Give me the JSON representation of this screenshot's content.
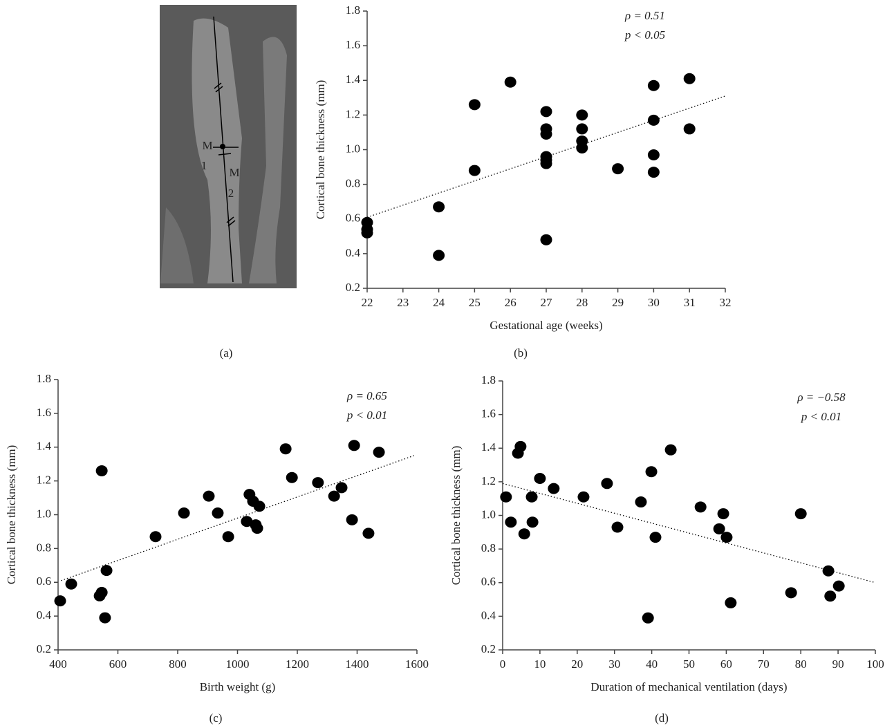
{
  "image_panel": {
    "labels": [
      "M",
      "1",
      "M",
      "2"
    ],
    "caption": "(a)"
  },
  "chart_data": [
    {
      "type": "scatter",
      "caption": "(b)",
      "xlabel": "Gestational age (weeks)",
      "ylabel": "Cortical bone thickness (mm)",
      "annotations": [
        "ρ = 0.51",
        "p < 0.05"
      ],
      "color": "#000000",
      "x": [
        22,
        22,
        22,
        24,
        24,
        25,
        25,
        26,
        27,
        27,
        27,
        27,
        27,
        27,
        27,
        28,
        28,
        28,
        28,
        29,
        30,
        30,
        30,
        30,
        31,
        31
      ],
      "values": [
        0.58,
        0.54,
        0.52,
        0.67,
        0.39,
        1.26,
        0.88,
        1.39,
        1.22,
        1.12,
        1.09,
        0.96,
        0.94,
        0.92,
        0.48,
        1.2,
        1.12,
        1.05,
        1.01,
        0.89,
        1.37,
        1.17,
        0.97,
        0.87,
        1.41,
        1.12
      ],
      "trend_line": {
        "x": [
          22,
          32
        ],
        "values": [
          0.61,
          1.31
        ]
      },
      "xlim": [
        22,
        32
      ],
      "xticks": [
        22,
        23,
        24,
        25,
        26,
        27,
        28,
        29,
        30,
        31,
        32
      ],
      "ylim": [
        0.2,
        1.8
      ],
      "yticks": [
        0.2,
        0.4,
        0.6,
        0.8,
        {
          "value": 1,
          "label": "1.0"
        },
        1.2,
        1.4,
        1.6,
        1.8
      ]
    },
    {
      "type": "scatter",
      "caption": "(c)",
      "xlabel": "Birth weight (g)",
      "ylabel": "Cortical bone thickness (mm)",
      "annotations": [
        "ρ = 0.65",
        "p < 0.01"
      ],
      "color": "#000000",
      "x": [
        407,
        444,
        546,
        539,
        546,
        562,
        557,
        726,
        821,
        904,
        934,
        969,
        1031,
        1040,
        1052,
        1061,
        1066,
        1073,
        1161,
        1182,
        1269,
        1323,
        1348,
        1383,
        1390,
        1438,
        1473
      ],
      "values": [
        0.49,
        0.59,
        1.26,
        0.52,
        0.54,
        0.67,
        0.39,
        0.87,
        1.01,
        1.11,
        1.01,
        0.87,
        0.96,
        1.12,
        1.08,
        0.94,
        0.92,
        1.05,
        1.39,
        1.22,
        1.19,
        1.11,
        1.16,
        0.97,
        1.41,
        0.89,
        1.37
      ],
      "trend_line": {
        "x": [
          410,
          1590
        ],
        "values": [
          0.61,
          1.35
        ]
      },
      "xlim": [
        400,
        1600
      ],
      "xticks": [
        400,
        600,
        800,
        1000,
        1200,
        1400,
        1600
      ],
      "ylim": [
        0.2,
        1.8
      ],
      "yticks": [
        0.2,
        0.4,
        0.6,
        0.8,
        {
          "value": 1,
          "label": "1.0"
        },
        1.2,
        1.4,
        1.6,
        1.8
      ]
    },
    {
      "type": "scatter",
      "caption": "(d)",
      "xlabel": "Duration of mechanical ventilation (days)",
      "ylabel": "Cortical bone thickness (mm)",
      "annotations": [
        "ρ = −0.58",
        "p < 0.01"
      ],
      "color": "#000000",
      "x": [
        0.9,
        2.2,
        4.1,
        4.8,
        5.8,
        7.8,
        8,
        10,
        13.7,
        21.7,
        28,
        30.8,
        37.1,
        39,
        39.9,
        41,
        45.1,
        53.1,
        58.1,
        59.2,
        60.1,
        61.2,
        77.4,
        80,
        87.4,
        87.9,
        90.2
      ],
      "values": [
        1.11,
        0.96,
        1.37,
        1.41,
        0.89,
        1.11,
        0.96,
        1.22,
        1.16,
        1.11,
        1.19,
        0.93,
        1.08,
        0.39,
        1.26,
        0.87,
        1.39,
        1.05,
        0.92,
        1.01,
        0.87,
        0.48,
        0.54,
        1.01,
        0.67,
        0.52,
        0.58
      ],
      "trend_line": {
        "x": [
          0,
          100
        ],
        "values": [
          1.19,
          0.6
        ]
      },
      "xlim": [
        0,
        100
      ],
      "xticks": [
        0,
        10,
        20,
        30,
        40,
        50,
        60,
        70,
        80,
        90,
        100
      ],
      "ylim": [
        0.2,
        1.8
      ],
      "yticks": [
        0.2,
        0.4,
        0.6,
        0.8,
        {
          "value": 1,
          "label": "1.0"
        },
        1.2,
        1.4,
        1.6,
        1.8
      ]
    }
  ]
}
